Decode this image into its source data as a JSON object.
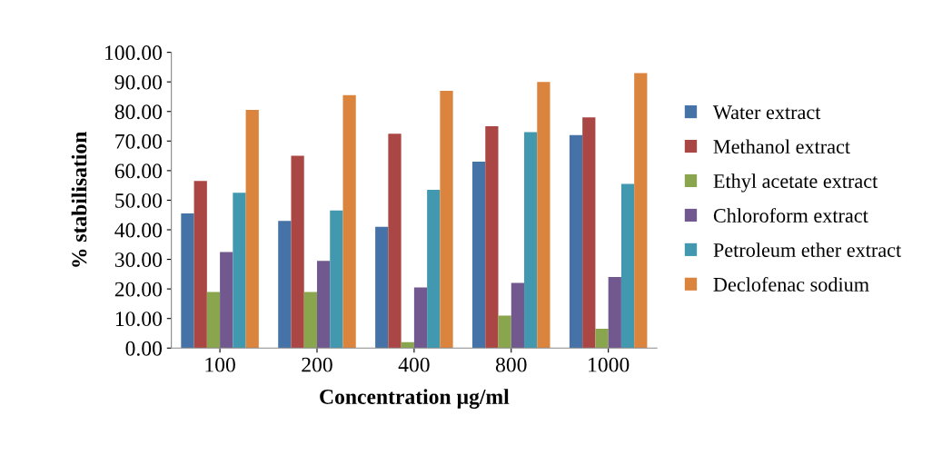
{
  "chart_data": {
    "type": "bar",
    "xlabel": "Concentration µg/ml",
    "ylabel": "% stabilisation",
    "categories": [
      "100",
      "200",
      "400",
      "800",
      "1000"
    ],
    "series": [
      {
        "name": "Water extract",
        "color": "#4572a7",
        "values": [
          45.5,
          43,
          41,
          63,
          72
        ]
      },
      {
        "name": "Methanol extract",
        "color": "#aa4643",
        "values": [
          56.5,
          65,
          72.5,
          75,
          78
        ]
      },
      {
        "name": "Ethyl acetate extract",
        "color": "#89a54e",
        "values": [
          19,
          19,
          2,
          11,
          6.5
        ]
      },
      {
        "name": "Chloroform extract",
        "color": "#71588f",
        "values": [
          32.5,
          29.5,
          20.5,
          22,
          24
        ]
      },
      {
        "name": "Petroleum ether extract",
        "color": "#4198af",
        "values": [
          52.5,
          46.5,
          53.5,
          73,
          55.5
        ]
      },
      {
        "name": "Declofenac sodium",
        "color": "#db843d",
        "values": [
          80.5,
          85.5,
          87,
          90,
          93
        ]
      }
    ],
    "ylim": [
      0,
      100
    ],
    "yticks": [
      {
        "value": 0,
        "label": "0.00"
      },
      {
        "value": 10,
        "label": "10.00"
      },
      {
        "value": 20,
        "label": "20.00"
      },
      {
        "value": 30,
        "label": "30.00"
      },
      {
        "value": 40,
        "label": "40.00"
      },
      {
        "value": 50,
        "label": "50.00"
      },
      {
        "value": 60,
        "label": "60.00"
      },
      {
        "value": 70,
        "label": "70.00"
      },
      {
        "value": 80,
        "label": "80.00"
      },
      {
        "value": 90,
        "label": "90.00"
      },
      {
        "value": 100,
        "label": "100.00"
      }
    ],
    "grid": false,
    "legend": "right"
  }
}
